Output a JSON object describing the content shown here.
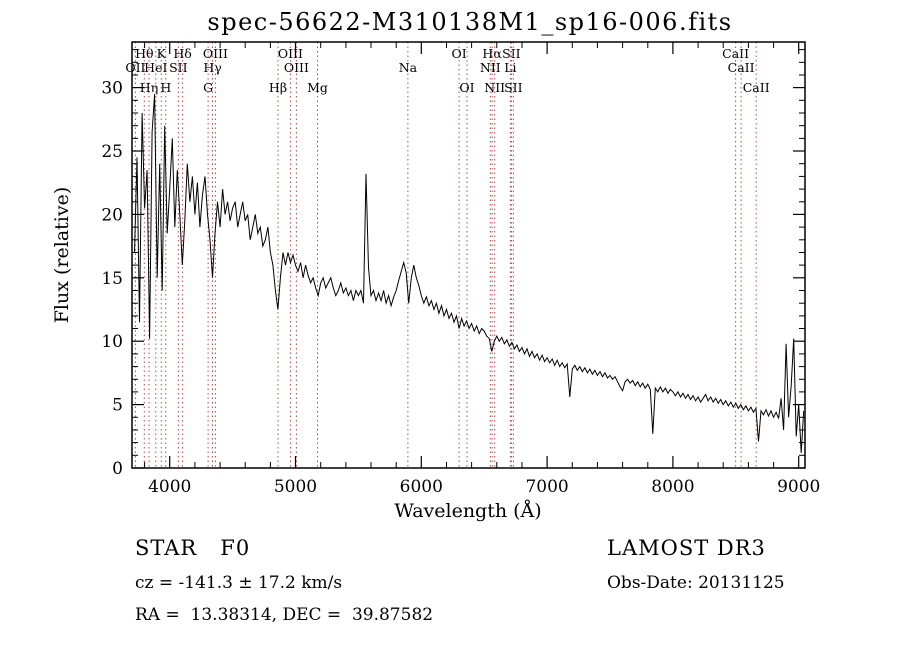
{
  "title": "spec-56622-M310138M1_sp16-006.fits",
  "colors": {
    "background": "#ffffff",
    "spectrum": "#000000",
    "line_marker": "#b24d4d",
    "axis": "#000000"
  },
  "footer": {
    "class_label": "STAR   F0",
    "survey": "LAMOST DR3",
    "cz": "cz = -141.3 ± 17.2 km/s",
    "obs_date": "Obs-Date: 20131125",
    "radec": "RA =  13.38314, DEC =  39.87582"
  },
  "chart_data": {
    "type": "line",
    "title": "spec-56622-M310138M1_sp16-006.fits",
    "xlabel": "Wavelength (Å)",
    "ylabel": "Flux (relative)",
    "xlim": [
      3700,
      9050
    ],
    "ylim": [
      0,
      33.6
    ],
    "x_ticks": [
      4000,
      5000,
      6000,
      7000,
      8000,
      9000
    ],
    "x_minor_step": 200,
    "y_ticks": [
      0,
      5,
      10,
      15,
      20,
      25,
      30
    ],
    "y_minor_step": 1,
    "grid": false,
    "x_start": 3720,
    "x_step": 20,
    "flux": [
      17.0,
      24.5,
      11.5,
      28.0,
      20.5,
      23.5,
      10.2,
      26.5,
      29.5,
      15.0,
      24.0,
      14.0,
      27.0,
      18.5,
      22.0,
      26.0,
      19.0,
      23.5,
      20.0,
      16.0,
      19.5,
      24.0,
      21.0,
      23.0,
      20.0,
      22.5,
      19.0,
      21.5,
      23.0,
      20.0,
      18.0,
      15.0,
      18.5,
      21.0,
      19.0,
      22.0,
      20.0,
      21.0,
      19.5,
      20.5,
      21.0,
      19.0,
      20.0,
      21.0,
      19.5,
      20.0,
      18.0,
      19.0,
      20.0,
      18.5,
      19.0,
      17.5,
      18.0,
      19.0,
      17.0,
      16.0,
      14.0,
      12.5,
      15.0,
      17.0,
      16.0,
      17.0,
      16.2,
      16.8,
      16.0,
      15.5,
      16.2,
      15.0,
      16.0,
      15.2,
      14.6,
      15.0,
      14.2,
      13.6,
      14.6,
      15.0,
      14.2,
      14.6,
      15.0,
      14.2,
      13.6,
      14.0,
      14.6,
      13.8,
      14.2,
      13.6,
      14.0,
      13.2,
      14.0,
      13.6,
      14.0,
      13.0,
      23.2,
      15.8,
      13.6,
      14.0,
      13.2,
      13.8,
      13.2,
      14.0,
      13.0,
      13.6,
      12.8,
      13.5,
      14.0,
      14.8,
      15.5,
      16.2,
      15.4,
      13.0,
      15.0,
      16.0,
      15.0,
      14.4,
      13.6,
      13.0,
      13.5,
      12.8,
      13.2,
      12.5,
      13.0,
      12.2,
      12.8,
      12.0,
      12.5,
      11.8,
      12.2,
      11.5,
      12.0,
      11.0,
      11.8,
      11.2,
      11.6,
      11.0,
      11.4,
      10.8,
      11.2,
      10.6,
      11.0,
      10.8,
      10.4,
      10.2,
      9.2,
      10.0,
      10.4,
      10.0,
      10.3,
      9.8,
      10.1,
      9.6,
      9.9,
      9.4,
      9.7,
      9.2,
      9.5,
      9.0,
      9.4,
      8.8,
      9.2,
      8.7,
      9.0,
      8.5,
      8.9,
      8.4,
      8.7,
      8.3,
      8.6,
      8.1,
      8.5,
      8.0,
      8.3,
      7.9,
      8.2,
      5.6,
      7.8,
      8.1,
      7.7,
      8.0,
      7.6,
      7.9,
      7.5,
      7.8,
      7.4,
      7.7,
      7.3,
      7.6,
      7.2,
      7.5,
      7.1,
      7.3,
      7.0,
      7.2,
      6.8,
      6.4,
      6.1,
      6.8,
      7.0,
      6.7,
      6.9,
      6.5,
      6.8,
      6.4,
      6.7,
      6.3,
      6.6,
      6.2,
      2.7,
      6.3,
      6.0,
      6.4,
      6.0,
      6.3,
      5.9,
      6.2,
      6.0,
      5.7,
      6.0,
      5.6,
      5.9,
      5.5,
      5.8,
      5.4,
      5.7,
      5.3,
      5.6,
      5.2,
      5.5,
      5.8,
      5.3,
      5.6,
      5.2,
      5.5,
      5.1,
      5.4,
      5.0,
      5.3,
      4.9,
      5.2,
      4.8,
      5.1,
      4.7,
      5.0,
      4.6,
      4.9,
      4.5,
      4.8,
      4.4,
      4.7,
      2.1,
      4.5,
      4.2,
      4.6,
      4.1,
      4.5,
      4.0,
      4.4,
      3.9,
      5.5,
      3.0,
      9.8,
      4.0,
      6.5,
      10.2,
      2.5,
      5.0,
      1.2,
      4.5
    ],
    "spectral_lines": [
      {
        "label": "OII",
        "wavelength": 3727,
        "row": 2
      },
      {
        "label": "Hθ",
        "wavelength": 3798,
        "row": 1
      },
      {
        "label": "Hη",
        "wavelength": 3835,
        "row": 3
      },
      {
        "label": "HeI",
        "wavelength": 3889,
        "row": 2
      },
      {
        "label": "K",
        "wavelength": 3933,
        "row": 1
      },
      {
        "label": "H",
        "wavelength": 3969,
        "row": 3
      },
      {
        "label": "SII",
        "wavelength": 4068,
        "row": 2
      },
      {
        "label": "Hδ",
        "wavelength": 4102,
        "row": 1
      },
      {
        "label": "G",
        "wavelength": 4305,
        "row": 3
      },
      {
        "label": "Hγ",
        "wavelength": 4340,
        "row": 2
      },
      {
        "label": "OIII",
        "wavelength": 4363,
        "row": 1
      },
      {
        "label": "Hβ",
        "wavelength": 4861,
        "row": 3
      },
      {
        "label": "OIII",
        "wavelength": 4959,
        "row": 1
      },
      {
        "label": "OIII",
        "wavelength": 5007,
        "row": 2
      },
      {
        "label": "Mg",
        "wavelength": 5175,
        "row": 3
      },
      {
        "label": "Na",
        "wavelength": 5893,
        "row": 2
      },
      {
        "label": "OI",
        "wavelength": 6300,
        "row": 1
      },
      {
        "label": "OI",
        "wavelength": 6363,
        "row": 3
      },
      {
        "label": "NII",
        "wavelength": 6548,
        "row": 2
      },
      {
        "label": "Hα",
        "wavelength": 6563,
        "row": 1
      },
      {
        "label": "NII",
        "wavelength": 6583,
        "row": 3
      },
      {
        "label": "Li",
        "wavelength": 6708,
        "row": 2
      },
      {
        "label": "SII",
        "wavelength": 6716,
        "row": 1
      },
      {
        "label": "SII",
        "wavelength": 6731,
        "row": 3
      },
      {
        "label": "CaII",
        "wavelength": 8498,
        "row": 1
      },
      {
        "label": "CaII",
        "wavelength": 8542,
        "row": 2
      },
      {
        "label": "CaII",
        "wavelength": 8662,
        "row": 3
      }
    ]
  }
}
